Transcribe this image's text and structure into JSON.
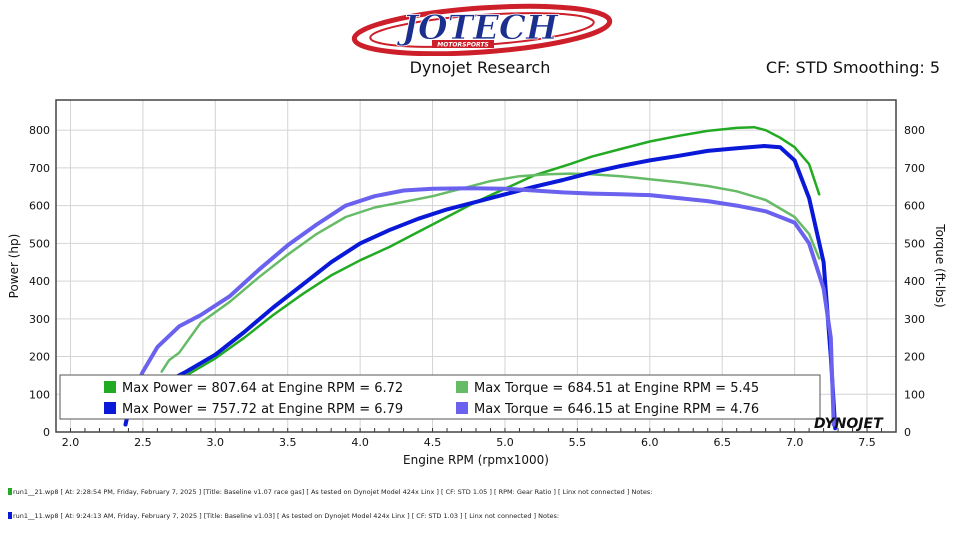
{
  "header": {
    "brand": "JOTECH",
    "brand_sub": "MOTORSPORTS",
    "title": "Dynojet Research",
    "cf": "CF: STD Smoothing: 5"
  },
  "colors": {
    "green": "#22aa22",
    "green_light": "#66bb66",
    "blue": "#0a18d8",
    "blue_light": "#6a62ee",
    "logo_red": "#cc1f2a",
    "logo_blue": "#1b2f8f"
  },
  "footer": {
    "run1": "run1__21.wp8 [ At: 2:28:54 PM, Friday, February 7, 2025 ] [Title: Baseline v1.07 race gas]  [ As tested on Dynojet Model 424x Linx ] [ CF: STD 1.05 ] [ RPM: Gear Ratio ] [ Linx not connected ] Notes:",
    "run2": "run1__11.wp8 [ At: 9:24:13 AM, Friday, February 7, 2025 ] [Title: Baseline v1.03]  [ As tested on Dynojet Model 424x Linx ] [ CF: STD 1.03 ] [ Linx not connected ] Notes:"
  },
  "chart_data": {
    "type": "line",
    "xlabel": "Engine RPM (rpmx1000)",
    "ylabel": "Power (hp)",
    "y2label": "Torque (ft-lbs)",
    "xlim": [
      1.9,
      7.7
    ],
    "ylim": [
      0,
      880
    ],
    "y2lim": [
      0,
      880
    ],
    "xticks": [
      "2.0",
      "2.5",
      "3.0",
      "3.5",
      "4.0",
      "4.5",
      "5.0",
      "5.5",
      "6.0",
      "6.5",
      "7.0",
      "7.5"
    ],
    "yticks": [
      "0",
      "100",
      "200",
      "300",
      "400",
      "500",
      "600",
      "700",
      "800"
    ],
    "watermark": "DYNOJET",
    "legend": [
      {
        "color": "#22aa22",
        "text": "Max Power = 807.64 at Engine RPM = 6.72"
      },
      {
        "color": "#66bb66",
        "text": "Max Torque = 684.51 at Engine RPM = 5.45"
      },
      {
        "color": "#0a18d8",
        "text": "Max Power = 757.72 at Engine RPM = 6.79"
      },
      {
        "color": "#6a62ee",
        "text": "Max Torque = 646.15 at Engine RPM = 4.76"
      }
    ],
    "series": [
      {
        "color": "#22aa22",
        "width": 2.5,
        "x": [
          2.63,
          2.7,
          2.8,
          3.0,
          3.2,
          3.4,
          3.6,
          3.8,
          4.0,
          4.2,
          4.4,
          4.6,
          4.8,
          5.0,
          5.2,
          5.45,
          5.6,
          5.8,
          6.0,
          6.2,
          6.4,
          6.6,
          6.72,
          6.8,
          6.9,
          7.0,
          7.1,
          7.17
        ],
        "y": [
          80,
          115,
          150,
          195,
          250,
          310,
          365,
          415,
          455,
          490,
          530,
          570,
          610,
          645,
          680,
          710,
          730,
          750,
          770,
          785,
          798,
          806,
          808,
          800,
          780,
          755,
          710,
          630
        ]
      },
      {
        "color": "#66bb66",
        "width": 2.5,
        "x": [
          2.63,
          2.68,
          2.75,
          2.9,
          3.1,
          3.3,
          3.5,
          3.7,
          3.9,
          4.1,
          4.3,
          4.5,
          4.7,
          4.9,
          5.1,
          5.3,
          5.45,
          5.6,
          5.8,
          6.0,
          6.2,
          6.4,
          6.6,
          6.8,
          7.0,
          7.1,
          7.17
        ],
        "y": [
          160,
          190,
          210,
          290,
          345,
          410,
          470,
          525,
          570,
          595,
          610,
          625,
          645,
          665,
          678,
          683,
          685,
          683,
          678,
          670,
          662,
          652,
          638,
          615,
          570,
          525,
          460
        ]
      },
      {
        "color": "#0a18d8",
        "width": 4,
        "x": [
          2.38,
          2.42,
          2.6,
          2.8,
          3.0,
          3.2,
          3.4,
          3.6,
          3.8,
          4.0,
          4.2,
          4.4,
          4.6,
          4.8,
          5.0,
          5.2,
          5.4,
          5.6,
          5.8,
          6.0,
          6.2,
          6.4,
          6.6,
          6.79,
          6.9,
          7.0,
          7.1,
          7.2,
          7.25,
          7.28
        ],
        "y": [
          20,
          85,
          120,
          160,
          205,
          265,
          330,
          390,
          450,
          500,
          535,
          565,
          590,
          610,
          630,
          650,
          668,
          688,
          705,
          720,
          732,
          745,
          752,
          758,
          755,
          720,
          620,
          450,
          200,
          10
        ]
      },
      {
        "color": "#6a62ee",
        "width": 4,
        "x": [
          2.42,
          2.5,
          2.6,
          2.75,
          2.9,
          3.1,
          3.3,
          3.5,
          3.7,
          3.9,
          4.1,
          4.3,
          4.5,
          4.76,
          5.0,
          5.2,
          5.4,
          5.6,
          5.8,
          6.0,
          6.2,
          6.4,
          6.6,
          6.8,
          7.0,
          7.1,
          7.2,
          7.25,
          7.27
        ],
        "y": [
          90,
          160,
          225,
          280,
          310,
          360,
          430,
          495,
          550,
          600,
          625,
          640,
          645,
          646,
          645,
          640,
          635,
          632,
          630,
          628,
          620,
          612,
          600,
          585,
          555,
          500,
          380,
          250,
          20
        ]
      }
    ]
  }
}
